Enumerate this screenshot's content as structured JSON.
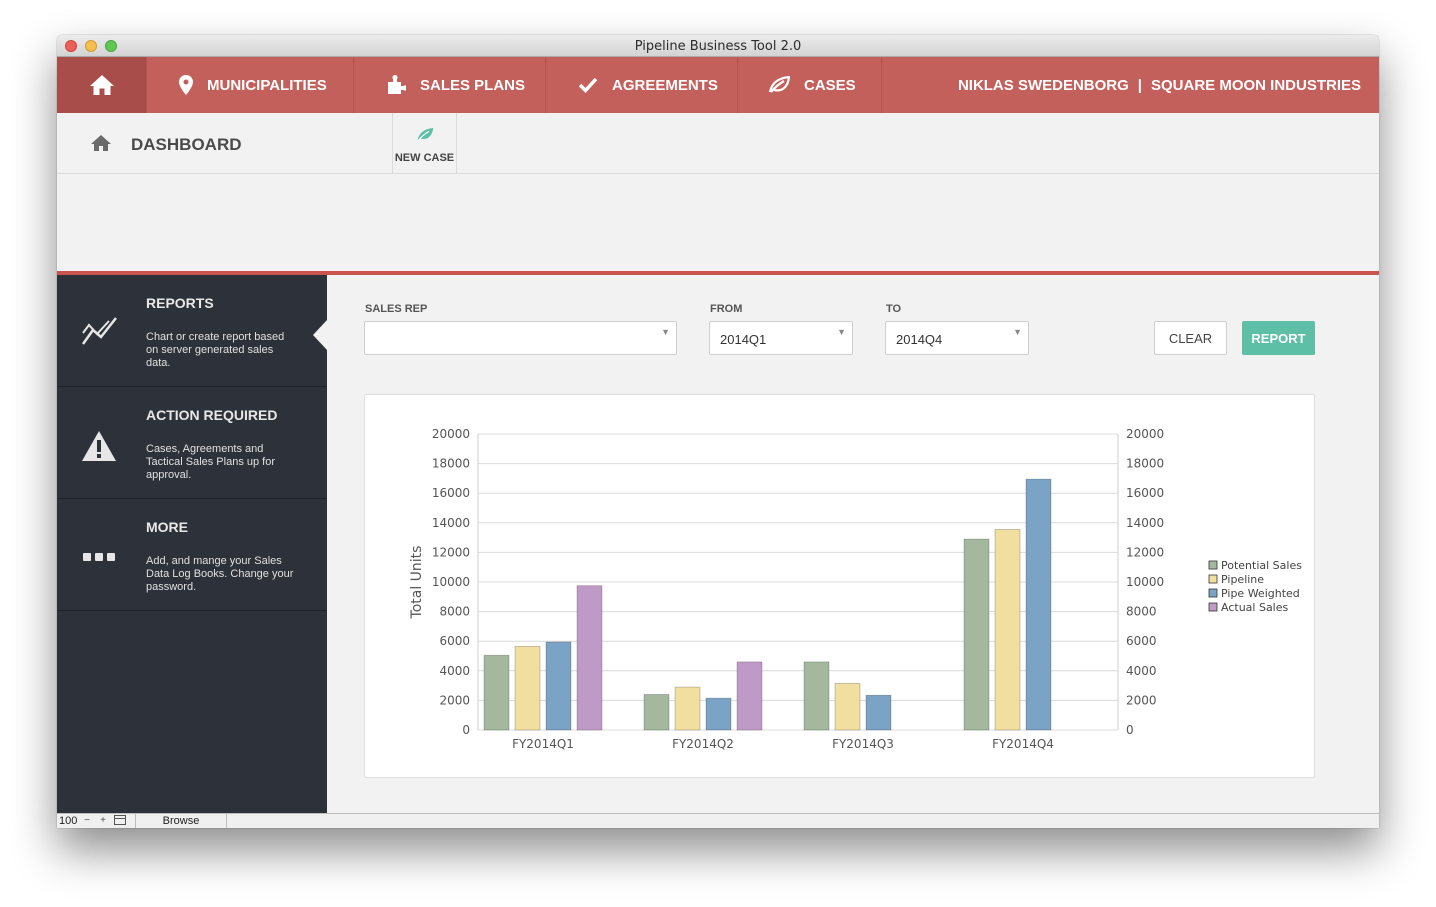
{
  "window": {
    "title": "Pipeline Business Tool 2.0"
  },
  "nav": {
    "items": [
      {
        "label": "MUNICIPALITIES",
        "icon": "map-pin-icon"
      },
      {
        "label": "SALES PLANS",
        "icon": "puzzle-icon"
      },
      {
        "label": "AGREEMENTS",
        "icon": "checkmark-icon"
      },
      {
        "label": "CASES",
        "icon": "leaf-icon"
      }
    ],
    "user": "NIKLAS SWEDENBORG",
    "separator": "|",
    "company": "SQUARE MOON INDUSTRIES"
  },
  "subbar": {
    "title": "DASHBOARD",
    "new_case": "NEW CASE"
  },
  "sidebar": {
    "items": [
      {
        "title": "REPORTS",
        "description": "Chart or create report based on server generated sales data.",
        "icon": "chart-line-icon"
      },
      {
        "title": "ACTION REQUIRED",
        "description": "Cases, Agreements and Tactical Sales Plans up for approval.",
        "icon": "warning-icon"
      },
      {
        "title": "MORE",
        "description": "Add, and mange your Sales Data Log Books. Change your password.",
        "icon": "more-dots-icon"
      }
    ]
  },
  "filters": {
    "sales_rep_label": "SALES REP",
    "sales_rep_value": "",
    "from_label": "FROM",
    "from_value": "2014Q1",
    "to_label": "TO",
    "to_value": "2014Q4",
    "dropdown_arrow": "▼",
    "clear_label": "CLEAR",
    "report_label": "REPORT"
  },
  "colors": {
    "accent_red": "#c4605c",
    "report_teal": "#5cbfa6",
    "sidebar_bg": "#2d313a"
  },
  "chart_data": {
    "type": "bar",
    "categories": [
      "FY2014Q1",
      "FY2014Q2",
      "FY2014Q3",
      "FY2014Q4"
    ],
    "series": [
      {
        "name": "Potential Sales",
        "color": "#a3b89e",
        "values": [
          5050,
          2400,
          4600,
          12900
        ]
      },
      {
        "name": "Pipeline",
        "color": "#f1df9f",
        "values": [
          5650,
          2900,
          3150,
          13550
        ]
      },
      {
        "name": "Pipe Weighted",
        "color": "#7aa3c6",
        "values": [
          5950,
          2150,
          2350,
          16950
        ]
      },
      {
        "name": "Actual Sales",
        "color": "#c09ac6",
        "values": [
          9750,
          4600,
          null,
          null
        ]
      }
    ],
    "ylabel": "Total Units",
    "ylim": [
      0,
      20000
    ],
    "yticks": [
      0,
      2000,
      4000,
      6000,
      8000,
      10000,
      12000,
      14000,
      16000,
      18000,
      20000
    ],
    "legend": "right",
    "grid": true
  },
  "status": {
    "zoom": "100",
    "minus": "−",
    "plus": "+",
    "mode": "Browse"
  }
}
